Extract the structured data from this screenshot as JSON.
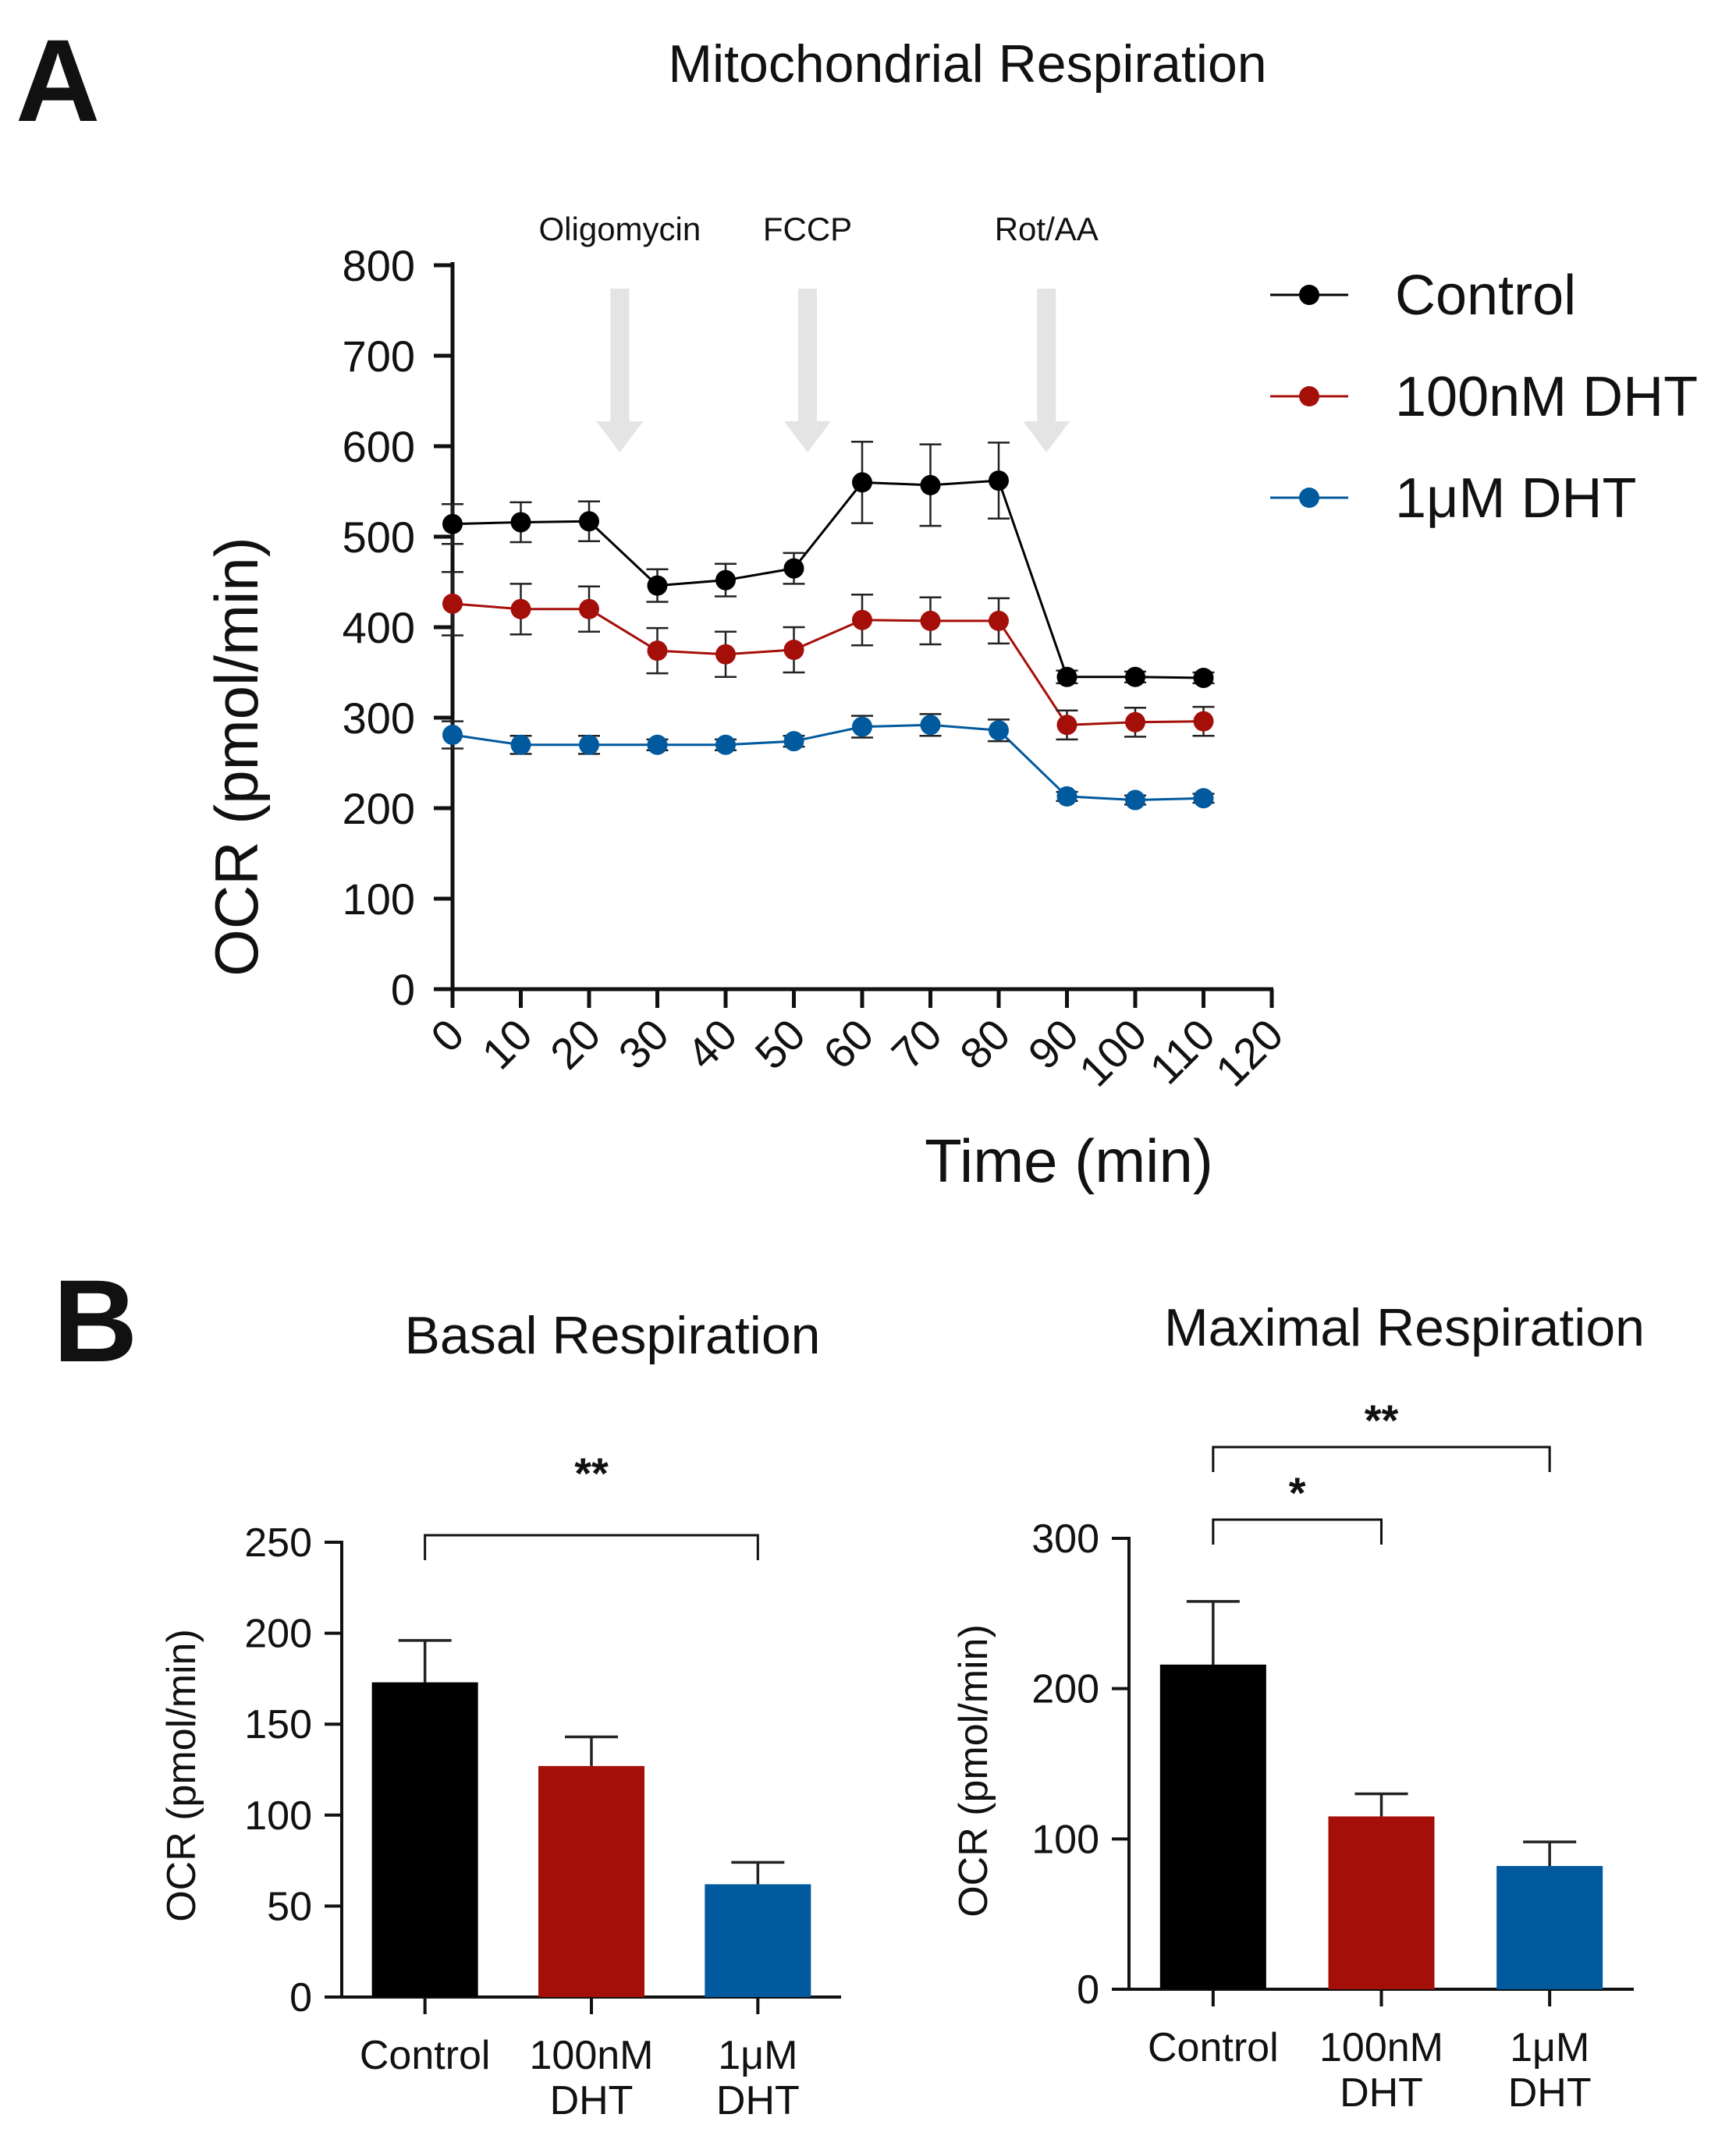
{
  "panel_labels": {
    "a": "A",
    "b": "B"
  },
  "colors": {
    "control": "#000000",
    "dht100": "#a50f0a",
    "dht1u": "#01599e",
    "injection_arrow": "#e4e4e4",
    "axis": "#111111"
  },
  "chart_data": [
    {
      "id": "mito",
      "type": "line",
      "title": "Mitochondrial Respiration",
      "xlabel": "Time (min)",
      "ylabel": "OCR (pmol/min)",
      "xlim": [
        0,
        120
      ],
      "ylim": [
        0,
        800
      ],
      "x_ticks": [
        "0",
        "10",
        "20",
        "30",
        "40",
        "50",
        "60",
        "70",
        "80",
        "90",
        "100",
        "110",
        "120"
      ],
      "y_ticks": [
        "0",
        "100",
        "200",
        "300",
        "400",
        "500",
        "600",
        "700",
        "800"
      ],
      "x": [
        0,
        10,
        20,
        30,
        40,
        50,
        60,
        70,
        80,
        90,
        100,
        110
      ],
      "legend_position": "top-right",
      "injections": [
        {
          "label": "Oligomycin",
          "x": 24.5
        },
        {
          "label": "FCCP",
          "x": 52
        },
        {
          "label": "Rot/AA",
          "x": 87
        }
      ],
      "series": [
        {
          "name": "Control",
          "color": "#000000",
          "values": [
            514,
            516,
            517,
            446,
            452,
            465,
            560,
            557,
            562,
            345,
            345,
            344
          ],
          "errors": [
            22,
            22,
            22,
            18,
            18,
            17,
            45,
            45,
            42,
            7,
            6,
            6
          ]
        },
        {
          "name": "100nM DHT",
          "color": "#a50f0a",
          "values": [
            426,
            420,
            420,
            374,
            370,
            375,
            408,
            407,
            407,
            292,
            295,
            296
          ],
          "errors": [
            35,
            28,
            25,
            25,
            25,
            25,
            28,
            26,
            25,
            16,
            16,
            16
          ]
        },
        {
          "name": "1μM DHT",
          "color": "#01599e",
          "values": [
            281,
            270,
            270,
            270,
            270,
            274,
            290,
            292,
            286,
            213,
            209,
            211
          ],
          "errors": [
            15,
            10,
            10,
            6,
            6,
            6,
            12,
            12,
            12,
            5,
            5,
            5
          ]
        }
      ]
    },
    {
      "id": "basal",
      "type": "bar",
      "title": "Basal Respiration",
      "ylabel": "OCR (pmol/min)",
      "ylim": [
        0,
        250
      ],
      "y_ticks": [
        "0",
        "50",
        "100",
        "150",
        "200",
        "250"
      ],
      "categories": [
        [
          "Control"
        ],
        [
          "100nM",
          "DHT"
        ],
        [
          "1μM",
          "DHT"
        ]
      ],
      "values": [
        173,
        127,
        62
      ],
      "errors": [
        23,
        16,
        12
      ],
      "colors": [
        "#000000",
        "#a50f0a",
        "#01599e"
      ],
      "significance": [
        {
          "from": 0,
          "to": 2,
          "label": "**"
        }
      ]
    },
    {
      "id": "maximal",
      "type": "bar",
      "title": "Maximal Respiration",
      "ylabel": "OCR (pmol/min)",
      "ylim": [
        0,
        300
      ],
      "y_ticks": [
        "0",
        "100",
        "200",
        "300"
      ],
      "categories": [
        [
          "Control"
        ],
        [
          "100nM",
          "DHT"
        ],
        [
          "1μM",
          "DHT"
        ]
      ],
      "values": [
        216,
        115,
        82
      ],
      "errors": [
        42,
        15,
        16
      ],
      "colors": [
        "#000000",
        "#a50f0a",
        "#01599e"
      ],
      "significance": [
        {
          "from": 0,
          "to": 1,
          "label": "*"
        },
        {
          "from": 0,
          "to": 2,
          "label": "**"
        }
      ]
    }
  ]
}
